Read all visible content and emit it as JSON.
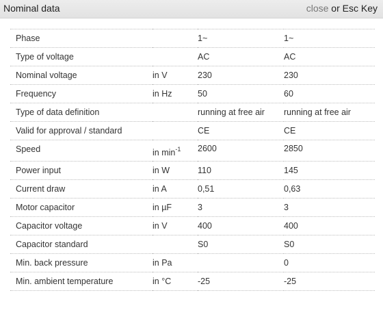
{
  "dialog": {
    "title": "Nominal data",
    "close_link": "close",
    "close_or": " or Esc Key"
  },
  "rows": [
    {
      "label": "Phase",
      "unit": "",
      "v1": "1~",
      "v2": "1~"
    },
    {
      "label": "Type of voltage",
      "unit": "",
      "v1": "AC",
      "v2": "AC"
    },
    {
      "label": "Nominal voltage",
      "unit": "in V",
      "v1": "230",
      "v2": "230"
    },
    {
      "label": "Frequency",
      "unit": "in Hz",
      "v1": "50",
      "v2": "60"
    },
    {
      "label": "Type of data definition",
      "unit": "",
      "v1": "running at free air",
      "v2": "running at free air"
    },
    {
      "label": "Valid for approval / standard",
      "unit": "",
      "v1": "CE",
      "v2": "CE"
    },
    {
      "label": "Speed",
      "unit": "in min",
      "unit_sup": "-1",
      "v1": "2600",
      "v2": "2850"
    },
    {
      "label": "Power input",
      "unit": "in W",
      "v1": "110",
      "v2": "145"
    },
    {
      "label": "Current draw",
      "unit": "in A",
      "v1": "0,51",
      "v2": "0,63"
    },
    {
      "label": "Motor capacitor",
      "unit": "in µF",
      "v1": "3",
      "v2": "3"
    },
    {
      "label": "Capacitor voltage",
      "unit": "in V",
      "v1": "400",
      "v2": "400"
    },
    {
      "label": "Capacitor standard",
      "unit": "",
      "v1": "S0",
      "v2": "S0"
    },
    {
      "label": "Min. back pressure",
      "unit": "in Pa",
      "v1": "",
      "v2": "0"
    },
    {
      "label": "Min. ambient temperature",
      "unit": "in °C",
      "v1": "-25",
      "v2": "-25"
    }
  ]
}
